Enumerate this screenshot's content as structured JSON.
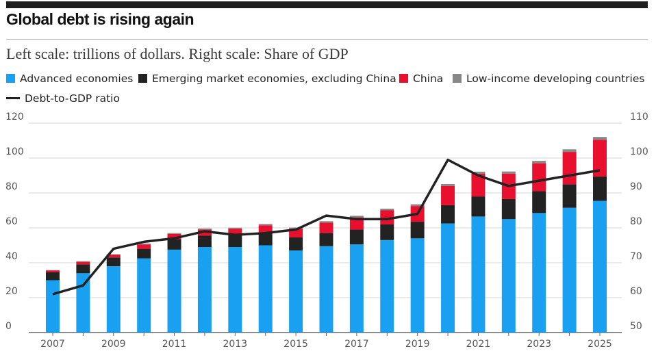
{
  "title": "Global debt is rising again",
  "subtitle": "Left scale: trillions of dollars. Right scale: Share of GDP",
  "legend": [
    {
      "label": "Advanced economies",
      "color": "#1aa0f0"
    },
    {
      "label": "Emerging market economies, excluding China",
      "color": "#222222"
    },
    {
      "label": "China",
      "color": "#e8102e"
    },
    {
      "label": "Low-income developing countries",
      "color": "#888888"
    },
    {
      "label": "Debt-to-GDP ratio",
      "color": "#222222"
    }
  ],
  "chart_data": {
    "type": "bar",
    "stacked": true,
    "categories": [
      "2007",
      "2008",
      "2009",
      "2010",
      "2011",
      "2012",
      "2013",
      "2014",
      "2015",
      "2016",
      "2017",
      "2018",
      "2019",
      "2020",
      "2021",
      "2022",
      "2023",
      "2024",
      "2025"
    ],
    "x_tick_labels": [
      "2007",
      "2009",
      "2011",
      "2013",
      "2015",
      "2017",
      "2019",
      "2021",
      "2023",
      "2025"
    ],
    "series": [
      {
        "name": "Advanced economies",
        "color": "#1aa0f0",
        "values": [
          30,
          34,
          38,
          42.5,
          47.5,
          49,
          49,
          50,
          47,
          49.5,
          50.5,
          53,
          54,
          62.5,
          66.5,
          65,
          68.5,
          71.5,
          75.5
        ]
      },
      {
        "name": "Emerging market economies, excluding China",
        "color": "#222222",
        "values": [
          4.5,
          5,
          5,
          5.5,
          6,
          6.5,
          7,
          7.5,
          7.5,
          7.5,
          8.5,
          9,
          9.5,
          10.5,
          11.5,
          11.5,
          12.5,
          13.5,
          14
        ]
      },
      {
        "name": "China",
        "color": "#e8102e",
        "values": [
          1,
          1.5,
          1.5,
          2.5,
          3,
          3.5,
          3.5,
          4,
          5,
          6,
          7,
          8,
          9,
          11,
          13,
          14.5,
          16,
          18.5,
          21
        ]
      },
      {
        "name": "Low-income developing countries",
        "color": "#888888",
        "values": [
          0.3,
          0.4,
          0.4,
          0.5,
          0.5,
          0.6,
          0.6,
          0.7,
          0.7,
          0.8,
          0.9,
          1,
          1,
          1.1,
          1.2,
          1.3,
          1.4,
          1.5,
          1.6
        ]
      }
    ],
    "line": {
      "name": "Debt-to-GDP ratio",
      "color": "#222222",
      "axis": "right",
      "values": [
        61,
        63.5,
        74,
        76,
        77,
        79,
        78,
        78.5,
        79.5,
        83.5,
        82.5,
        82.5,
        84,
        99.5,
        95,
        92,
        93.5,
        95,
        96.5
      ]
    },
    "ylim_left": [
      0,
      120
    ],
    "yticks_left": [
      0,
      20,
      40,
      60,
      80,
      100,
      120
    ],
    "ylim_right": [
      50,
      110
    ],
    "yticks_right": [
      50,
      60,
      70,
      80,
      90,
      100,
      110
    ],
    "grid": true
  }
}
